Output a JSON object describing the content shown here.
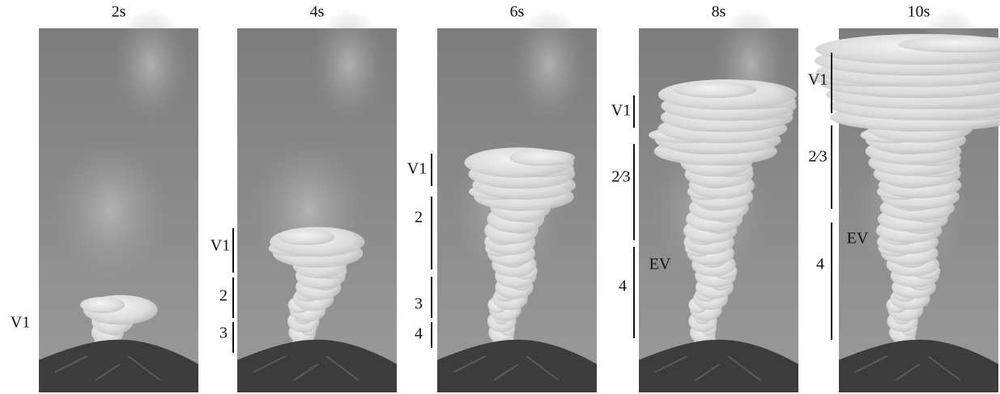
{
  "panels": [
    {
      "title": "2s",
      "labels": [
        "V1"
      ]
    },
    {
      "title": "4s",
      "labels": [
        "V1",
        "2",
        "3"
      ]
    },
    {
      "title": "6s",
      "labels": [
        "V1",
        "2",
        "3",
        "4"
      ]
    },
    {
      "title": "8s",
      "labels": [
        "V1",
        "2⁄3",
        "4",
        "EV"
      ]
    },
    {
      "title": "10s",
      "labels": [
        "V1",
        "2⁄3",
        "4",
        "EV"
      ]
    }
  ]
}
